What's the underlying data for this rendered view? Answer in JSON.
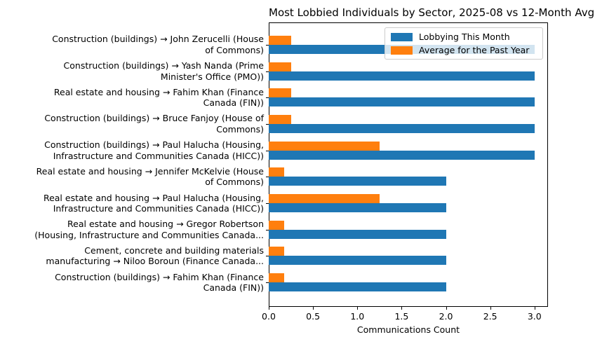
{
  "chart_data": {
    "type": "bar",
    "orientation": "horizontal",
    "title": "Most Lobbied Individuals by Sector, 2025-08 vs 12-Month Avg",
    "xlabel": "Communications Count",
    "ylabel": "",
    "xlim": [
      0,
      3.15
    ],
    "xticks": [
      "0.0",
      "0.5",
      "1.0",
      "1.5",
      "2.0",
      "2.5",
      "3.0"
    ],
    "grid": false,
    "legend_position": "upper right",
    "categories": [
      "Construction (buildings) → John Zerucelli (House of Commons)",
      "Construction (buildings) → Yash Nanda (Prime Minister's Office (PMO))",
      "Real estate and housing → Fahim Khan (Finance Canada (FIN))",
      "Construction (buildings) → Bruce Fanjoy (House of Commons)",
      "Construction (buildings) → Paul Halucha (Housing, Infrastructure and Communities Canada (HICC))",
      "Real estate and housing → Jennifer McKelvie (House of Commons)",
      "Real estate and housing → Paul Halucha (Housing, Infrastructure and Communities Canada (HICC))",
      "Real estate and housing → Gregor Robertson (Housing, Infrastructure and Communities Canada...",
      "Cement, concrete and building materials manufacturing → Niloo Boroun (Finance Canada...",
      "Construction (buildings) → Fahim Khan (Finance Canada (FIN))"
    ],
    "category_lines": [
      [
        "Construction (buildings) → John Zerucelli (House",
        "of Commons)"
      ],
      [
        "Construction (buildings) → Yash Nanda (Prime",
        "Minister's Office (PMO))"
      ],
      [
        "Real estate and housing → Fahim Khan (Finance",
        "Canada (FIN))"
      ],
      [
        "Construction (buildings) → Bruce Fanjoy (House of",
        "Commons)"
      ],
      [
        "Construction (buildings) → Paul Halucha (Housing,",
        "Infrastructure and Communities Canada (HICC))"
      ],
      [
        "Real estate and housing → Jennifer McKelvie (House",
        "of Commons)"
      ],
      [
        "Real estate and housing → Paul Halucha (Housing,",
        "Infrastructure and Communities Canada (HICC))"
      ],
      [
        "Real estate and housing → Gregor Robertson",
        "(Housing, Infrastructure and Communities Canada..."
      ],
      [
        "Cement, concrete and building materials",
        "manufacturing → Niloo Boroun (Finance Canada..."
      ],
      [
        "Construction (buildings) → Fahim Khan (Finance",
        "Canada (FIN))"
      ]
    ],
    "series": [
      {
        "name": "Lobbying This Month",
        "color": "#1f77b4",
        "values": [
          3.0,
          3.0,
          3.0,
          3.0,
          3.0,
          2.0,
          2.0,
          2.0,
          2.0,
          2.0
        ]
      },
      {
        "name": "Average for the Past Year",
        "color": "#ff7f0e",
        "values": [
          0.25,
          0.25,
          0.25,
          0.25,
          1.25,
          0.17,
          1.25,
          0.17,
          0.17,
          0.17
        ]
      }
    ]
  }
}
